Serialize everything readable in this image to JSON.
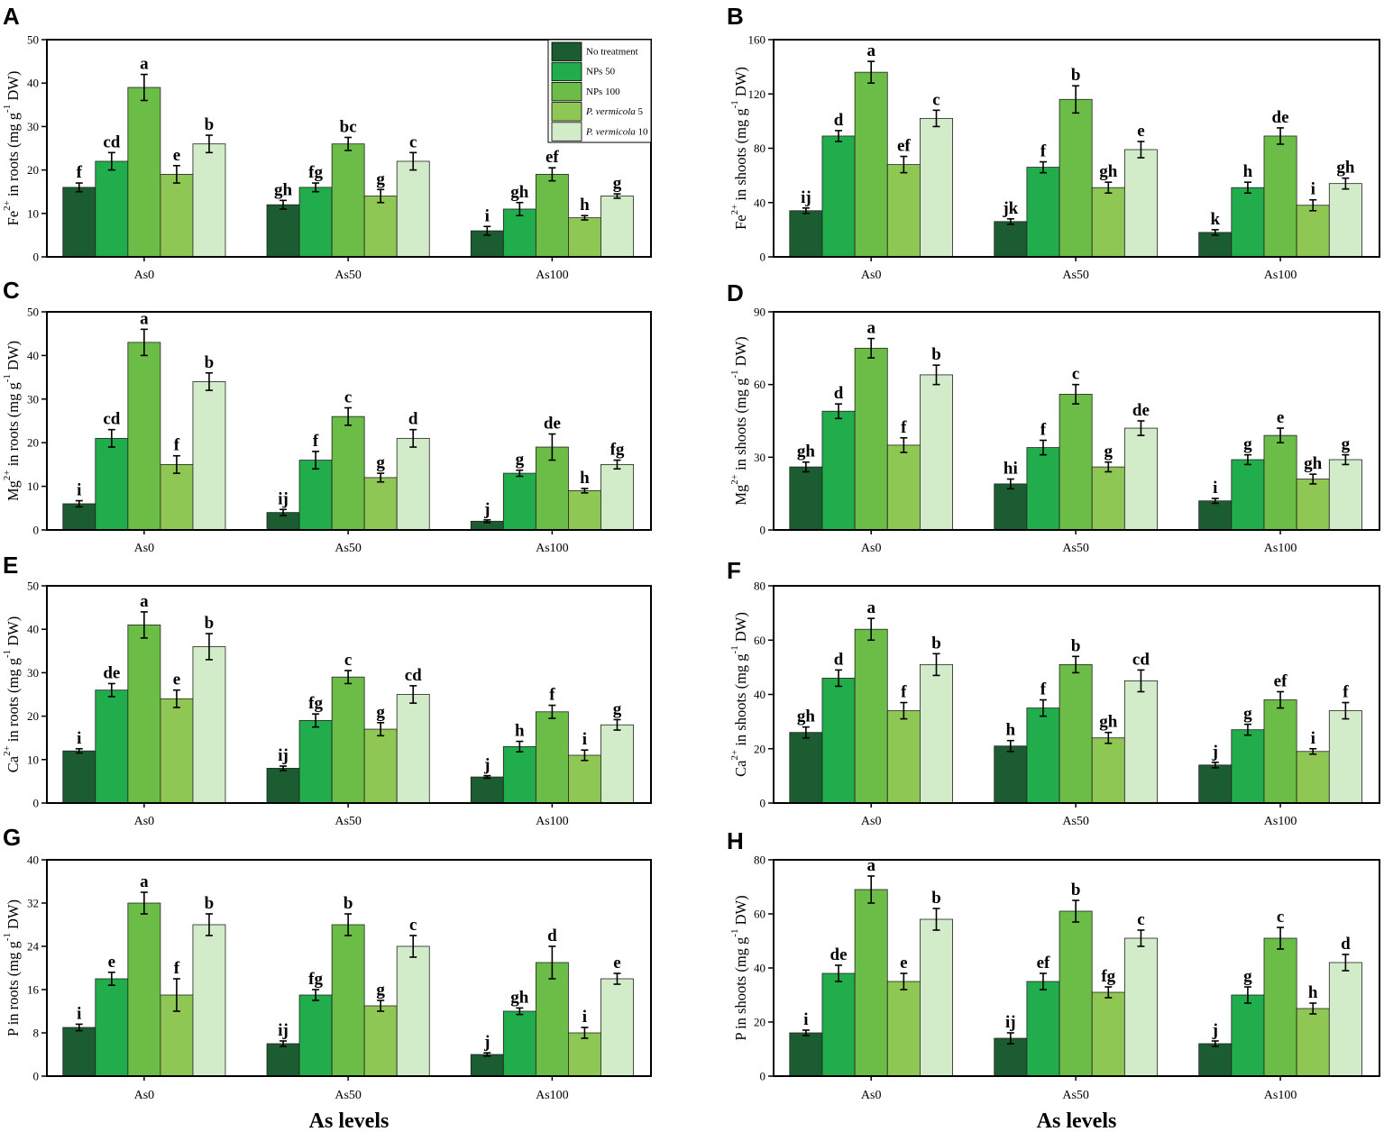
{
  "chart_data": [
    {
      "panel": "A",
      "type": "bar",
      "title": "",
      "ylabel": [
        {
          "text": "Fe"
        },
        {
          "text": "2+",
          "sup": true
        },
        {
          "text": " in roots (mg g"
        },
        {
          "text": "-1",
          "sup": true
        },
        {
          "text": " DW)"
        }
      ],
      "xlabel": "",
      "categories": [
        "As0",
        "As50",
        "As100"
      ],
      "ylim": [
        0,
        50
      ],
      "yticks": [
        0,
        10,
        20,
        30,
        40,
        50
      ],
      "grid": false,
      "show_legend": true,
      "series": [
        {
          "name": "No treatment",
          "color": "#1b5c31",
          "values": [
            16,
            12,
            6
          ],
          "errors": [
            1,
            1,
            1
          ],
          "letters": [
            "f",
            "gh",
            "i"
          ]
        },
        {
          "name": "NPs 50",
          "color": "#21ad4c",
          "values": [
            22,
            16,
            11
          ],
          "errors": [
            2,
            1,
            1.5
          ],
          "letters": [
            "cd",
            "fg",
            "gh"
          ]
        },
        {
          "name": "NPs 100",
          "color": "#6cbd47",
          "values": [
            39,
            26,
            19
          ],
          "errors": [
            3,
            1.5,
            1.5
          ],
          "letters": [
            "a",
            "bc",
            "ef"
          ]
        },
        {
          "name": "P. vermicola 5",
          "color": "#8fc754",
          "values": [
            19,
            14,
            9
          ],
          "errors": [
            2,
            1.5,
            0.5
          ],
          "letters": [
            "e",
            "g",
            "h"
          ]
        },
        {
          "name": "P. vermicola 10",
          "color": "#d2ebc8",
          "values": [
            26,
            22,
            14
          ],
          "errors": [
            2,
            2,
            0.5
          ],
          "letters": [
            "b",
            "c",
            "g"
          ]
        }
      ]
    },
    {
      "panel": "B",
      "type": "bar",
      "title": "",
      "ylabel": [
        {
          "text": "Fe"
        },
        {
          "text": "2+",
          "sup": true
        },
        {
          "text": " in shoots (mg g"
        },
        {
          "text": "-1",
          "sup": true
        },
        {
          "text": " DW)"
        }
      ],
      "xlabel": "",
      "categories": [
        "As0",
        "As50",
        "As100"
      ],
      "ylim": [
        0,
        160
      ],
      "yticks": [
        0,
        40,
        80,
        120,
        160
      ],
      "grid": false,
      "show_legend": false,
      "series": [
        {
          "name": "No treatment",
          "color": "#1b5c31",
          "values": [
            34,
            26,
            18
          ],
          "errors": [
            2,
            2,
            2
          ],
          "letters": [
            "ij",
            "jk",
            "k"
          ]
        },
        {
          "name": "NPs 50",
          "color": "#21ad4c",
          "values": [
            89,
            66,
            51
          ],
          "errors": [
            4,
            4,
            4
          ],
          "letters": [
            "d",
            "f",
            "h"
          ]
        },
        {
          "name": "NPs 100",
          "color": "#6cbd47",
          "values": [
            136,
            116,
            89
          ],
          "errors": [
            8,
            10,
            6
          ],
          "letters": [
            "a",
            "b",
            "de"
          ]
        },
        {
          "name": "P. vermicola 5",
          "color": "#8fc754",
          "values": [
            68,
            51,
            38
          ],
          "errors": [
            6,
            4,
            4
          ],
          "letters": [
            "ef",
            "gh",
            "i"
          ]
        },
        {
          "name": "P. vermicola 10",
          "color": "#d2ebc8",
          "values": [
            102,
            79,
            54
          ],
          "errors": [
            6,
            6,
            4
          ],
          "letters": [
            "c",
            "e",
            "gh"
          ]
        }
      ]
    },
    {
      "panel": "C",
      "type": "bar",
      "title": "",
      "ylabel": [
        {
          "text": "Mg"
        },
        {
          "text": "2+",
          "sup": true
        },
        {
          "text": " in roots (mg g"
        },
        {
          "text": "-1",
          "sup": true
        },
        {
          "text": " DW)"
        }
      ],
      "xlabel": "",
      "categories": [
        "As0",
        "As50",
        "As100"
      ],
      "ylim": [
        0,
        50
      ],
      "yticks": [
        0,
        10,
        20,
        30,
        40,
        50
      ],
      "grid": false,
      "show_legend": false,
      "series": [
        {
          "name": "No treatment",
          "color": "#1b5c31",
          "values": [
            6,
            4,
            2
          ],
          "errors": [
            0.7,
            0.7,
            0.3
          ],
          "letters": [
            "i",
            "ij",
            "j"
          ]
        },
        {
          "name": "NPs 50",
          "color": "#21ad4c",
          "values": [
            21,
            16,
            13
          ],
          "errors": [
            2,
            2,
            0.7
          ],
          "letters": [
            "cd",
            "f",
            "g"
          ]
        },
        {
          "name": "NPs 100",
          "color": "#6cbd47",
          "values": [
            43,
            26,
            19
          ],
          "errors": [
            3,
            2,
            3
          ],
          "letters": [
            "a",
            "c",
            "de"
          ]
        },
        {
          "name": "P. vermicola 5",
          "color": "#8fc754",
          "values": [
            15,
            12,
            9
          ],
          "errors": [
            2,
            1,
            0.5
          ],
          "letters": [
            "f",
            "g",
            "h"
          ]
        },
        {
          "name": "P. vermicola 10",
          "color": "#d2ebc8",
          "values": [
            34,
            21,
            15
          ],
          "errors": [
            2,
            2,
            1
          ],
          "letters": [
            "b",
            "d",
            "fg"
          ]
        }
      ]
    },
    {
      "panel": "D",
      "type": "bar",
      "title": "",
      "ylabel": [
        {
          "text": "Mg"
        },
        {
          "text": "2+",
          "sup": true
        },
        {
          "text": " in shoots (mg g"
        },
        {
          "text": "-1",
          "sup": true
        },
        {
          "text": " DW)"
        }
      ],
      "xlabel": "",
      "categories": [
        "As0",
        "As50",
        "As100"
      ],
      "ylim": [
        0,
        90
      ],
      "yticks": [
        0,
        30,
        60,
        90
      ],
      "grid": false,
      "show_legend": false,
      "series": [
        {
          "name": "No treatment",
          "color": "#1b5c31",
          "values": [
            26,
            19,
            12
          ],
          "errors": [
            2,
            2,
            1
          ],
          "letters": [
            "gh",
            "hi",
            "i"
          ]
        },
        {
          "name": "NPs 50",
          "color": "#21ad4c",
          "values": [
            49,
            34,
            29
          ],
          "errors": [
            3,
            3,
            2
          ],
          "letters": [
            "d",
            "f",
            "g"
          ]
        },
        {
          "name": "NPs 100",
          "color": "#6cbd47",
          "values": [
            75,
            56,
            39
          ],
          "errors": [
            4,
            4,
            3
          ],
          "letters": [
            "a",
            "c",
            "e"
          ]
        },
        {
          "name": "P. vermicola 5",
          "color": "#8fc754",
          "values": [
            35,
            26,
            21
          ],
          "errors": [
            3,
            2,
            2
          ],
          "letters": [
            "f",
            "g",
            "gh"
          ]
        },
        {
          "name": "P. vermicola 10",
          "color": "#d2ebc8",
          "values": [
            64,
            42,
            29
          ],
          "errors": [
            4,
            3,
            2
          ],
          "letters": [
            "b",
            "de",
            "g"
          ]
        }
      ]
    },
    {
      "panel": "E",
      "type": "bar",
      "title": "",
      "ylabel": [
        {
          "text": "Ca"
        },
        {
          "text": "2+",
          "sup": true
        },
        {
          "text": " in roots (mg g"
        },
        {
          "text": "-1",
          "sup": true
        },
        {
          "text": " DW)"
        }
      ],
      "xlabel": "",
      "categories": [
        "As0",
        "As50",
        "As100"
      ],
      "ylim": [
        0,
        50
      ],
      "yticks": [
        0,
        10,
        20,
        30,
        40,
        50
      ],
      "grid": false,
      "show_legend": false,
      "series": [
        {
          "name": "No treatment",
          "color": "#1b5c31",
          "values": [
            12,
            8,
            6
          ],
          "errors": [
            0.5,
            0.5,
            0.3
          ],
          "letters": [
            "i",
            "ij",
            "j"
          ]
        },
        {
          "name": "NPs 50",
          "color": "#21ad4c",
          "values": [
            26,
            19,
            13
          ],
          "errors": [
            1.5,
            1.5,
            1.2
          ],
          "letters": [
            "de",
            "fg",
            "h"
          ]
        },
        {
          "name": "NPs 100",
          "color": "#6cbd47",
          "values": [
            41,
            29,
            21
          ],
          "errors": [
            3,
            1.5,
            1.5
          ],
          "letters": [
            "a",
            "c",
            "f"
          ]
        },
        {
          "name": "P. vermicola 5",
          "color": "#8fc754",
          "values": [
            24,
            17,
            11
          ],
          "errors": [
            2,
            1.5,
            1.2
          ],
          "letters": [
            "e",
            "g",
            "i"
          ]
        },
        {
          "name": "P. vermicola 10",
          "color": "#d2ebc8",
          "values": [
            36,
            25,
            18
          ],
          "errors": [
            3,
            2,
            1.2
          ],
          "letters": [
            "b",
            "cd",
            "g"
          ]
        }
      ]
    },
    {
      "panel": "F",
      "type": "bar",
      "title": "",
      "ylabel": [
        {
          "text": "Ca"
        },
        {
          "text": "2+",
          "sup": true
        },
        {
          "text": " in shoots (mg g"
        },
        {
          "text": "-1",
          "sup": true
        },
        {
          "text": " DW)"
        }
      ],
      "xlabel": "",
      "categories": [
        "As0",
        "As50",
        "As100"
      ],
      "ylim": [
        0,
        80
      ],
      "yticks": [
        0,
        20,
        40,
        60,
        80
      ],
      "grid": false,
      "show_legend": false,
      "series": [
        {
          "name": "No treatment",
          "color": "#1b5c31",
          "values": [
            26,
            21,
            14
          ],
          "errors": [
            2,
            2,
            1
          ],
          "letters": [
            "gh",
            "h",
            "j"
          ]
        },
        {
          "name": "NPs 50",
          "color": "#21ad4c",
          "values": [
            46,
            35,
            27
          ],
          "errors": [
            3,
            3,
            2
          ],
          "letters": [
            "d",
            "f",
            "g"
          ]
        },
        {
          "name": "NPs 100",
          "color": "#6cbd47",
          "values": [
            64,
            51,
            38
          ],
          "errors": [
            4,
            3,
            3
          ],
          "letters": [
            "a",
            "b",
            "ef"
          ]
        },
        {
          "name": "P. vermicola 5",
          "color": "#8fc754",
          "values": [
            34,
            24,
            19
          ],
          "errors": [
            3,
            2,
            1
          ],
          "letters": [
            "f",
            "gh",
            "i"
          ]
        },
        {
          "name": "P. vermicola 10",
          "color": "#d2ebc8",
          "values": [
            51,
            45,
            34
          ],
          "errors": [
            4,
            4,
            3
          ],
          "letters": [
            "b",
            "cd",
            "f"
          ]
        }
      ]
    },
    {
      "panel": "G",
      "type": "bar",
      "title": "",
      "ylabel": [
        {
          "text": "P in roots (mg g"
        },
        {
          "text": "-1",
          "sup": true
        },
        {
          "text": " DW)"
        }
      ],
      "xlabel": "As levels",
      "categories": [
        "As0",
        "As50",
        "As100"
      ],
      "ylim": [
        0,
        40
      ],
      "yticks": [
        0,
        8,
        16,
        24,
        32,
        40
      ],
      "grid": false,
      "show_legend": false,
      "series": [
        {
          "name": "No treatment",
          "color": "#1b5c31",
          "values": [
            9,
            6,
            4
          ],
          "errors": [
            0.6,
            0.5,
            0.3
          ],
          "letters": [
            "i",
            "ij",
            "j"
          ]
        },
        {
          "name": "NPs 50",
          "color": "#21ad4c",
          "values": [
            18,
            15,
            12
          ],
          "errors": [
            1.2,
            1,
            0.6
          ],
          "letters": [
            "e",
            "fg",
            "gh"
          ]
        },
        {
          "name": "NPs 100",
          "color": "#6cbd47",
          "values": [
            32,
            28,
            21
          ],
          "errors": [
            2,
            2,
            3
          ],
          "letters": [
            "a",
            "b",
            "d"
          ]
        },
        {
          "name": "P. vermicola 5",
          "color": "#8fc754",
          "values": [
            15,
            13,
            8
          ],
          "errors": [
            3,
            1,
            1
          ],
          "letters": [
            "f",
            "g",
            "i"
          ]
        },
        {
          "name": "P. vermicola 10",
          "color": "#d2ebc8",
          "values": [
            28,
            24,
            18
          ],
          "errors": [
            2,
            2,
            1
          ],
          "letters": [
            "b",
            "c",
            "e"
          ]
        }
      ]
    },
    {
      "panel": "H",
      "type": "bar",
      "title": "",
      "ylabel": [
        {
          "text": "P in shoots (mg g"
        },
        {
          "text": "-1",
          "sup": true
        },
        {
          "text": " DW)"
        }
      ],
      "xlabel": "As levels",
      "categories": [
        "As0",
        "As50",
        "As100"
      ],
      "ylim": [
        0,
        80
      ],
      "yticks": [
        0,
        20,
        40,
        60,
        80
      ],
      "grid": false,
      "show_legend": false,
      "series": [
        {
          "name": "No treatment",
          "color": "#1b5c31",
          "values": [
            16,
            14,
            12
          ],
          "errors": [
            1,
            2,
            1
          ],
          "letters": [
            "i",
            "ij",
            "j"
          ]
        },
        {
          "name": "NPs 50",
          "color": "#21ad4c",
          "values": [
            38,
            35,
            30
          ],
          "errors": [
            3,
            3,
            3
          ],
          "letters": [
            "de",
            "ef",
            "g"
          ]
        },
        {
          "name": "NPs 100",
          "color": "#6cbd47",
          "values": [
            69,
            61,
            51
          ],
          "errors": [
            5,
            4,
            4
          ],
          "letters": [
            "a",
            "b",
            "c"
          ]
        },
        {
          "name": "P. vermicola 5",
          "color": "#8fc754",
          "values": [
            35,
            31,
            25
          ],
          "errors": [
            3,
            2,
            2
          ],
          "letters": [
            "e",
            "fg",
            "h"
          ]
        },
        {
          "name": "P. vermicola 10",
          "color": "#d2ebc8",
          "values": [
            58,
            51,
            42
          ],
          "errors": [
            4,
            3,
            3
          ],
          "letters": [
            "b",
            "c",
            "d"
          ]
        }
      ]
    }
  ]
}
